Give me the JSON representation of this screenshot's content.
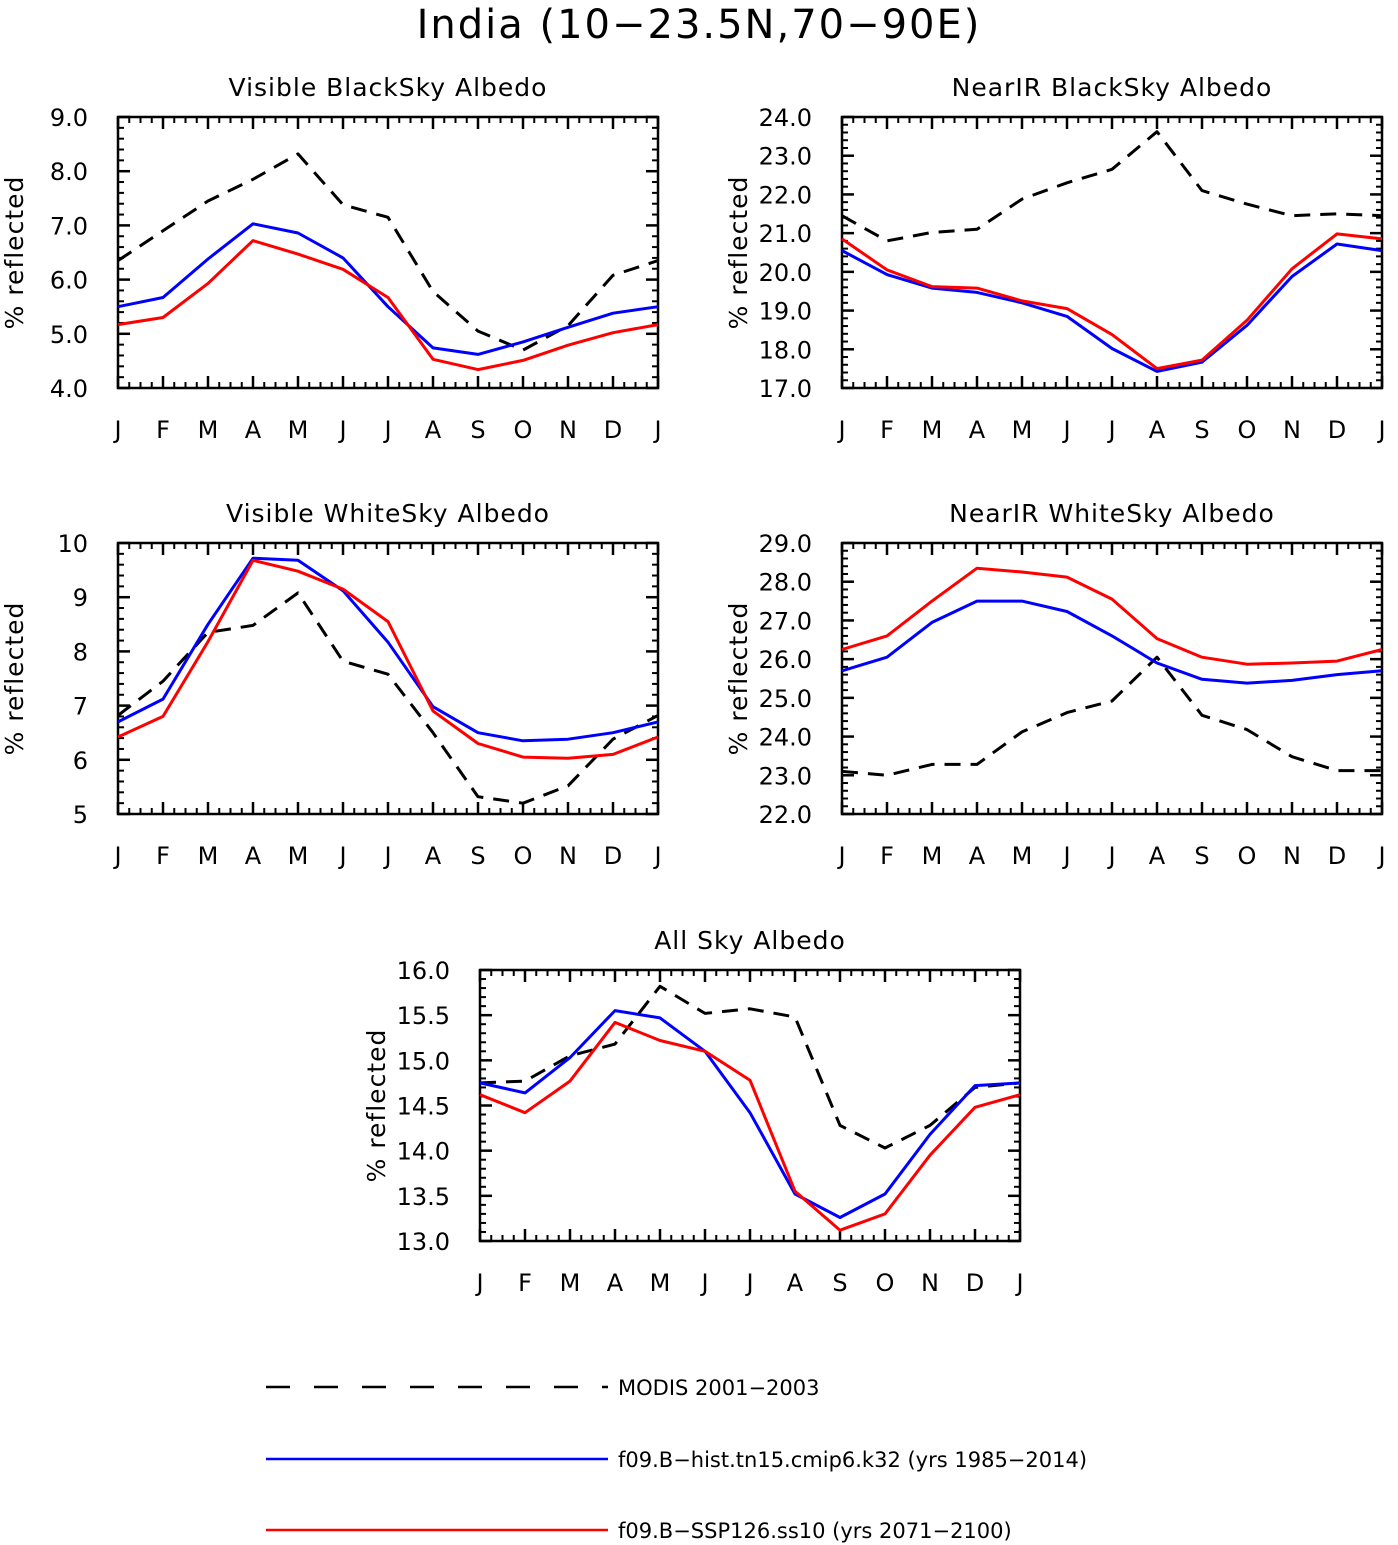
{
  "figure_title": "India (10−23.5N,70−90E)",
  "colors": {
    "modis": "#000000",
    "hist": "#0000ff",
    "ssp": "#ff0000"
  },
  "legend": [
    {
      "key": "modis",
      "label": "MODIS 2001−2003",
      "color": "#000000",
      "dash": true
    },
    {
      "key": "hist",
      "label": "f09.B−hist.tn15.cmip6.k32 (yrs 1985−2014)",
      "color": "#0000ff",
      "dash": false
    },
    {
      "key": "ssp",
      "label": "f09.B−SSP126.ss10 (yrs 2071−2100)",
      "color": "#ff0000",
      "dash": false
    }
  ],
  "chart_data": [
    {
      "type": "line",
      "title": "Visible BlackSky Albedo",
      "ylabel": "% reflected",
      "categories": [
        "J",
        "F",
        "M",
        "A",
        "M",
        "J",
        "J",
        "A",
        "S",
        "O",
        "N",
        "D",
        "J"
      ],
      "ylim": [
        4.0,
        9.0
      ],
      "yticks": [
        4.0,
        5.0,
        6.0,
        7.0,
        8.0,
        9.0
      ],
      "ytick_labels": [
        "4.0",
        "5.0",
        "6.0",
        "7.0",
        "8.0",
        "9.0"
      ],
      "series": [
        {
          "name": "MODIS 2001−2003",
          "key": "modis",
          "values": [
            6.35,
            6.9,
            7.45,
            7.85,
            8.32,
            7.38,
            7.15,
            5.78,
            5.05,
            4.7,
            5.15,
            6.08,
            6.35
          ]
        },
        {
          "name": "f09.B−hist.tn15.cmip6.k32 (yrs 1985−2014)",
          "key": "hist",
          "values": [
            5.5,
            5.67,
            6.38,
            7.03,
            6.86,
            6.4,
            5.5,
            4.74,
            4.62,
            4.85,
            5.12,
            5.38,
            5.5
          ]
        },
        {
          "name": "f09.B−SSP126.ss10 (yrs 2071−2100)",
          "key": "ssp",
          "values": [
            5.17,
            5.3,
            5.93,
            6.72,
            6.47,
            6.19,
            5.67,
            4.53,
            4.34,
            4.51,
            4.79,
            5.02,
            5.17
          ]
        }
      ]
    },
    {
      "type": "line",
      "title": "NearIR BlackSky Albedo",
      "ylabel": "% reflected",
      "categories": [
        "J",
        "F",
        "M",
        "A",
        "M",
        "J",
        "J",
        "A",
        "S",
        "O",
        "N",
        "D",
        "J"
      ],
      "ylim": [
        17.0,
        24.0
      ],
      "yticks": [
        17.0,
        18.0,
        19.0,
        20.0,
        21.0,
        22.0,
        23.0,
        24.0
      ],
      "ytick_labels": [
        "17.0",
        "18.0",
        "19.0",
        "20.0",
        "21.0",
        "22.0",
        "23.0",
        "24.0"
      ],
      "series": [
        {
          "name": "MODIS 2001−2003",
          "key": "modis",
          "values": [
            21.45,
            20.8,
            21.02,
            21.1,
            21.88,
            22.3,
            22.65,
            23.62,
            22.1,
            21.75,
            21.45,
            21.5,
            21.45
          ]
        },
        {
          "name": "f09.B−hist.tn15.cmip6.k32 (yrs 1985−2014)",
          "key": "hist",
          "values": [
            20.55,
            19.93,
            19.58,
            19.47,
            19.2,
            18.85,
            18.02,
            17.43,
            17.67,
            18.62,
            19.88,
            20.72,
            20.55
          ]
        },
        {
          "name": "f09.B−SSP126.ss10 (yrs 2071−2100)",
          "key": "ssp",
          "values": [
            20.85,
            20.05,
            19.62,
            19.58,
            19.25,
            19.05,
            18.38,
            17.5,
            17.72,
            18.75,
            20.08,
            20.98,
            20.85
          ]
        }
      ]
    },
    {
      "type": "line",
      "title": "Visible WhiteSky Albedo",
      "ylabel": "% reflected",
      "categories": [
        "J",
        "F",
        "M",
        "A",
        "M",
        "J",
        "J",
        "A",
        "S",
        "O",
        "N",
        "D",
        "J"
      ],
      "ylim": [
        5,
        10
      ],
      "yticks": [
        5,
        6,
        7,
        8,
        9,
        10
      ],
      "ytick_labels": [
        "5",
        "6",
        "7",
        "8",
        "9",
        "10"
      ],
      "series": [
        {
          "name": "MODIS 2001−2003",
          "key": "modis",
          "values": [
            6.82,
            7.45,
            8.35,
            8.48,
            9.08,
            7.82,
            7.58,
            6.5,
            5.32,
            5.2,
            5.52,
            6.38,
            6.82
          ]
        },
        {
          "name": "f09.B−hist.tn15.cmip6.k32 (yrs 1985−2014)",
          "key": "hist",
          "values": [
            6.7,
            7.12,
            8.5,
            9.72,
            9.68,
            9.12,
            8.17,
            6.98,
            6.5,
            6.35,
            6.38,
            6.5,
            6.7
          ]
        },
        {
          "name": "f09.B−SSP126.ss10 (yrs 2071−2100)",
          "key": "ssp",
          "values": [
            6.42,
            6.8,
            8.18,
            9.68,
            9.48,
            9.15,
            8.55,
            6.9,
            6.3,
            6.05,
            6.03,
            6.1,
            6.42
          ]
        }
      ]
    },
    {
      "type": "line",
      "title": "NearIR WhiteSky Albedo",
      "ylabel": "% reflected",
      "categories": [
        "J",
        "F",
        "M",
        "A",
        "M",
        "J",
        "J",
        "A",
        "S",
        "O",
        "N",
        "D",
        "J"
      ],
      "ylim": [
        22.0,
        29.0
      ],
      "yticks": [
        22.0,
        23.0,
        24.0,
        25.0,
        26.0,
        27.0,
        28.0,
        29.0
      ],
      "ytick_labels": [
        "22.0",
        "23.0",
        "24.0",
        "25.0",
        "26.0",
        "27.0",
        "28.0",
        "29.0"
      ],
      "series": [
        {
          "name": "MODIS 2001−2003",
          "key": "modis",
          "values": [
            23.1,
            23.0,
            23.28,
            23.28,
            24.12,
            24.62,
            24.92,
            26.05,
            24.55,
            24.18,
            23.48,
            23.12,
            23.12
          ]
        },
        {
          "name": "f09.B−hist.tn15.cmip6.k32 (yrs 1985−2014)",
          "key": "hist",
          "values": [
            25.7,
            26.05,
            26.95,
            27.5,
            27.5,
            27.23,
            26.6,
            25.9,
            25.48,
            25.38,
            25.45,
            25.6,
            25.7
          ]
        },
        {
          "name": "f09.B−SSP126.ss10 (yrs 2071−2100)",
          "key": "ssp",
          "values": [
            26.25,
            26.6,
            27.5,
            28.35,
            28.25,
            28.12,
            27.55,
            26.53,
            26.05,
            25.87,
            25.9,
            25.95,
            26.25
          ]
        }
      ]
    },
    {
      "type": "line",
      "title": "All Sky Albedo",
      "ylabel": "% reflected",
      "categories": [
        "J",
        "F",
        "M",
        "A",
        "M",
        "J",
        "J",
        "A",
        "S",
        "O",
        "N",
        "D",
        "J"
      ],
      "ylim": [
        13.0,
        16.0
      ],
      "yticks": [
        13.0,
        13.5,
        14.0,
        14.5,
        15.0,
        15.5,
        16.0
      ],
      "ytick_labels": [
        "13.0",
        "13.5",
        "14.0",
        "14.5",
        "15.0",
        "15.5",
        "16.0"
      ],
      "series": [
        {
          "name": "MODIS 2001−2003",
          "key": "modis",
          "values": [
            14.75,
            14.77,
            15.05,
            15.18,
            15.82,
            15.52,
            15.57,
            15.48,
            14.28,
            14.03,
            14.28,
            14.7,
            14.75
          ]
        },
        {
          "name": "f09.B−hist.tn15.cmip6.k32 (yrs 1985−2014)",
          "key": "hist",
          "values": [
            14.75,
            14.64,
            15.03,
            15.55,
            15.47,
            15.1,
            14.42,
            13.52,
            13.26,
            13.52,
            14.18,
            14.72,
            14.75
          ]
        },
        {
          "name": "f09.B−SSP126.ss10 (yrs 2071−2100)",
          "key": "ssp",
          "values": [
            14.62,
            14.42,
            14.77,
            15.42,
            15.22,
            15.1,
            14.78,
            13.55,
            13.12,
            13.3,
            13.95,
            14.48,
            14.62
          ]
        }
      ]
    }
  ]
}
